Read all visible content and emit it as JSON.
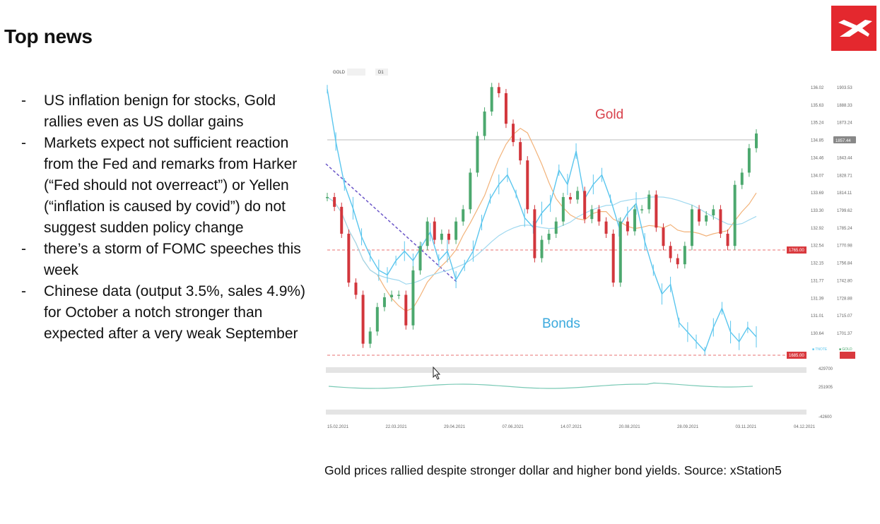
{
  "slide": {
    "title": "Top news",
    "bullets": [
      "US inflation benign for stocks, Gold rallies even as US dollar gains",
      "Markets expect not sufficient reaction from the Fed and remarks from Harker (“Fed should not overreact”) or Yellen (“inflation is caused by covid”) do not suggest sudden policy change",
      "there’s a storm of FOMC speeches this week",
      "Chinese data (output 3.5%, sales 4.9%) for October a notch stronger than expected after a very weak September"
    ],
    "bullet_marker": "-",
    "caption": "Gold prices rallied despite stronger dollar and higher bond yields. Source: xStation5",
    "logo": "xtb-x-logo"
  },
  "chart_data": {
    "type": "line",
    "symbol": "GOLD",
    "interval": "D1",
    "annotations": {
      "gold_label": "Gold",
      "bonds_label": "Bonds"
    },
    "x_ticks": [
      "15.02.2021",
      "22.03.2021",
      "29.04.2021",
      "07.06.2021",
      "14.07.2021",
      "20.08.2021",
      "28.09.2021",
      "03.11.2021",
      "04.12.2021"
    ],
    "y_left_ticks": [
      "136.02",
      "135.63",
      "135.24",
      "134.85",
      "134.46",
      "134.07",
      "133.69",
      "133.30",
      "132.92",
      "132.54",
      "132.15",
      "131.77",
      "131.39",
      "131.01",
      "130.64"
    ],
    "y_right_ticks": [
      "1903.53",
      "1888.33",
      "1873.24",
      "1843.44",
      "1828.71",
      "1814.11",
      "1799.62",
      "1785.24",
      "1770.98",
      "1756.84",
      "1742.80",
      "1728.88",
      "1715.07",
      "1701.37"
    ],
    "current_price_tag": "1857.44",
    "level_tags": [
      "1765.00",
      "1685.00"
    ],
    "volume_ticks": [
      "429700",
      "251905",
      "-42600"
    ],
    "legend": [
      "TNOTE",
      "GOLD"
    ],
    "colors": {
      "gold_up": "#4ca86e",
      "gold_down": "#d2363c",
      "bonds": "#5bc6ee",
      "ma_fast": "#f2b279",
      "ma_slow": "#9fd8ef",
      "trend": "#6a55c8",
      "level": "#e87070",
      "tag": "#d9393e"
    },
    "series": [
      {
        "name": "GOLD",
        "values": [
          1810,
          1802,
          1780,
          1740,
          1730,
          1690,
          1700,
          1720,
          1728,
          1730,
          1730,
          1705,
          1750,
          1770,
          1790,
          1775,
          1780,
          1775,
          1790,
          1800,
          1830,
          1860,
          1880,
          1900,
          1895,
          1870,
          1855,
          1840,
          1800,
          1760,
          1775,
          1780,
          1790,
          1810,
          1808,
          1815,
          1792,
          1800,
          1790,
          1780,
          1740,
          1790,
          1782,
          1800,
          1800,
          1812,
          1785,
          1770,
          1760,
          1755,
          1770,
          1800,
          1790,
          1795,
          1800,
          1780,
          1770,
          1820,
          1830,
          1850,
          1862
        ]
      },
      {
        "name": "TNOTE",
        "values": [
          135.9,
          134.8,
          133.9,
          133.4,
          132.8,
          132.4,
          132.1,
          132.0,
          132.3,
          132.5,
          132.3,
          132.6,
          132.9,
          132.3,
          132.5,
          131.9,
          132.2,
          132.5,
          133.1,
          133.6,
          133.9,
          134.1,
          133.7,
          133.2,
          133.0,
          133.3,
          133.5,
          134.2,
          133.9,
          134.6,
          133.6,
          133.9,
          134.1,
          133.6,
          133.0,
          133.3,
          133.5,
          132.7,
          132.1,
          131.6,
          131.8,
          131.0,
          130.8,
          130.6,
          130.4,
          130.9,
          131.3,
          130.8,
          130.6,
          130.9,
          130.7
        ]
      }
    ]
  }
}
